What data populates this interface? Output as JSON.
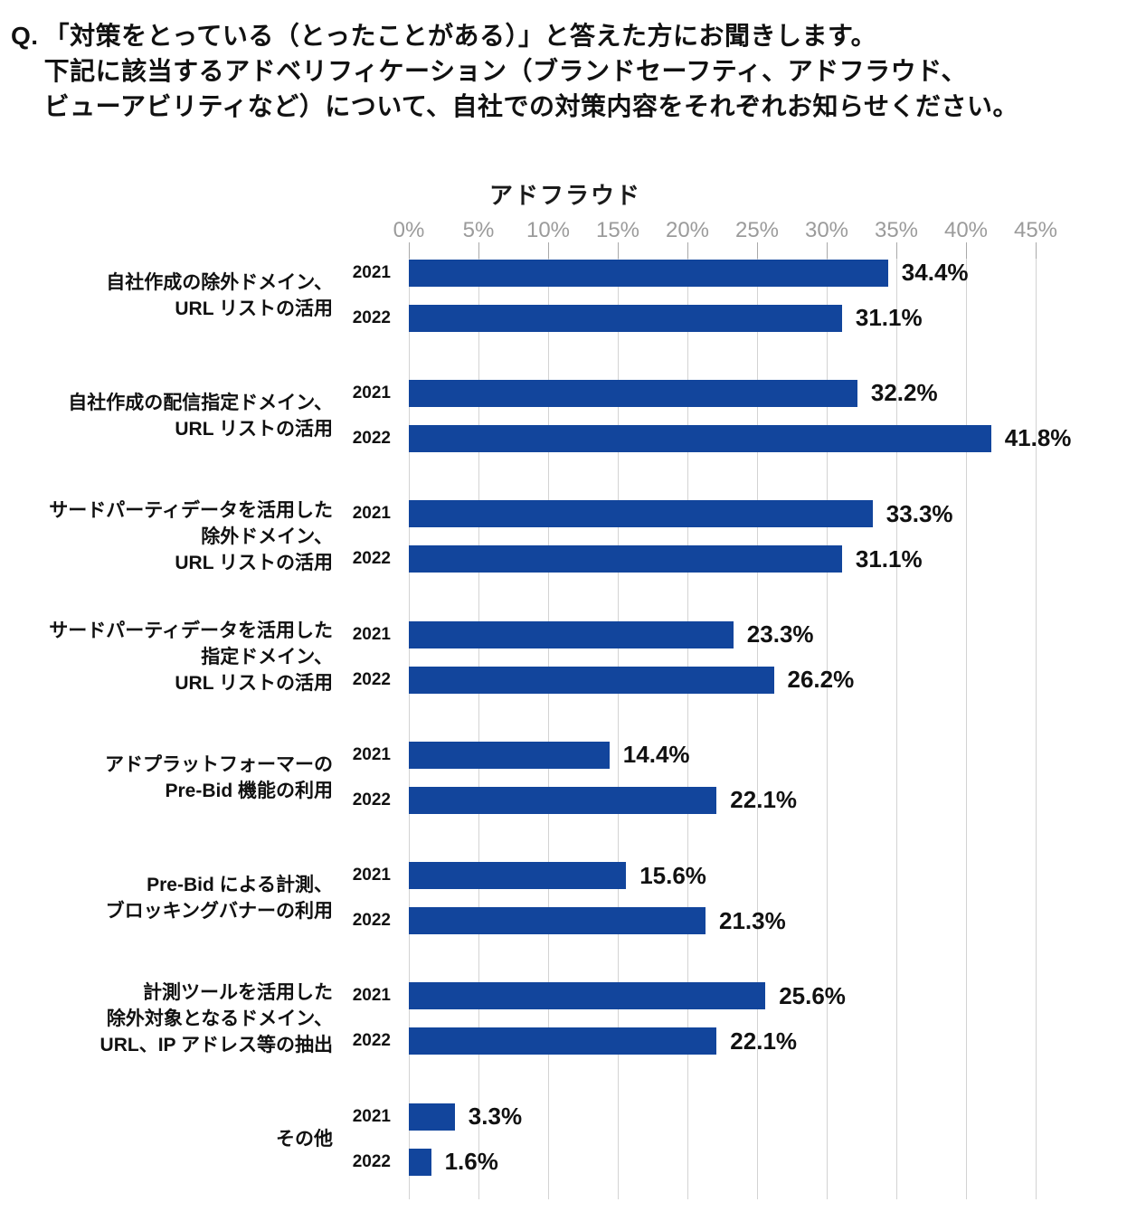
{
  "header": {
    "q_prefix": "Q.",
    "lines": [
      "「対策をとっている（とったことがある）」と答えた方にお聞きします。",
      "下記に該当するアドベリフィケーション（ブランドセーフティ、アドフラウド、",
      "ビューアビリティなど）について、自社での対策内容をそれぞれお知らせください。"
    ]
  },
  "chart_data": {
    "type": "bar",
    "orientation": "horizontal",
    "title": "アドフラウド",
    "xlabel": "",
    "ylabel": "",
    "xlim": [
      0,
      45
    ],
    "x_ticks": [
      "0%",
      "5%",
      "10%",
      "15%",
      "20%",
      "25%",
      "30%",
      "35%",
      "40%",
      "45%"
    ],
    "grid": true,
    "legend_position": "none",
    "series_years": [
      "2021",
      "2022"
    ],
    "categories": [
      {
        "label_lines": [
          "自社作成の除外ドメイン、",
          "URL リストの活用"
        ],
        "bars": [
          {
            "year": "2021",
            "value": 34.4,
            "label": "34.4%"
          },
          {
            "year": "2022",
            "value": 31.1,
            "label": "31.1%"
          }
        ]
      },
      {
        "label_lines": [
          "自社作成の配信指定ドメイン、",
          "URL リストの活用"
        ],
        "bars": [
          {
            "year": "2021",
            "value": 32.2,
            "label": "32.2%"
          },
          {
            "year": "2022",
            "value": 41.8,
            "label": "41.8%"
          }
        ]
      },
      {
        "label_lines": [
          "サードパーティデータを活用した",
          "除外ドメイン、",
          "URL リストの活用"
        ],
        "bars": [
          {
            "year": "2021",
            "value": 33.3,
            "label": "33.3%"
          },
          {
            "year": "2022",
            "value": 31.1,
            "label": "31.1%"
          }
        ]
      },
      {
        "label_lines": [
          "サードパーティデータを活用した",
          "指定ドメイン、",
          "URL リストの活用"
        ],
        "bars": [
          {
            "year": "2021",
            "value": 23.3,
            "label": "23.3%"
          },
          {
            "year": "2022",
            "value": 26.2,
            "label": "26.2%"
          }
        ]
      },
      {
        "label_lines": [
          "アドプラットフォーマーの",
          "Pre-Bid 機能の利用"
        ],
        "bars": [
          {
            "year": "2021",
            "value": 14.4,
            "label": "14.4%"
          },
          {
            "year": "2022",
            "value": 22.1,
            "label": "22.1%"
          }
        ]
      },
      {
        "label_lines": [
          "Pre-Bid による計測、",
          "ブロッキングバナーの利用"
        ],
        "bars": [
          {
            "year": "2021",
            "value": 15.6,
            "label": "15.6%"
          },
          {
            "year": "2022",
            "value": 21.3,
            "label": "21.3%"
          }
        ]
      },
      {
        "label_lines": [
          "計測ツールを活用した",
          "除外対象となるドメイン、",
          "URL、IP アドレス等の抽出"
        ],
        "bars": [
          {
            "year": "2021",
            "value": 25.6,
            "label": "25.6%"
          },
          {
            "year": "2022",
            "value": 22.1,
            "label": "22.1%"
          }
        ]
      },
      {
        "label_lines": [
          "その他"
        ],
        "bars": [
          {
            "year": "2021",
            "value": 3.3,
            "label": "3.3%"
          },
          {
            "year": "2022",
            "value": 1.6,
            "label": "1.6%"
          }
        ]
      }
    ],
    "colors": {
      "bar": "#12459C",
      "gridline": "#d3d3d3",
      "tick_label": "#9b9b9b",
      "text": "#111111"
    }
  }
}
